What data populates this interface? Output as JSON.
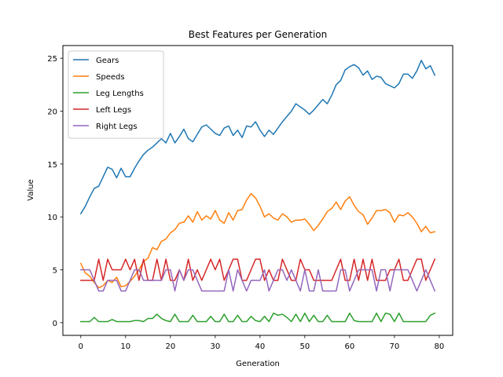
{
  "chart_data": {
    "type": "line",
    "title": "Best Features per Generation",
    "xlabel": "Generation",
    "ylabel": "Value",
    "xlim": [
      -4,
      83
    ],
    "ylim": [
      -1.2,
      26.2
    ],
    "xticks": [
      0,
      10,
      20,
      30,
      40,
      50,
      60,
      70,
      80
    ],
    "yticks": [
      0,
      5,
      10,
      15,
      20,
      25
    ],
    "grid": false,
    "legend_position": "upper-left",
    "x": [
      0,
      1,
      2,
      3,
      4,
      5,
      6,
      7,
      8,
      9,
      10,
      11,
      12,
      13,
      14,
      15,
      16,
      17,
      18,
      19,
      20,
      21,
      22,
      23,
      24,
      25,
      26,
      27,
      28,
      29,
      30,
      31,
      32,
      33,
      34,
      35,
      36,
      37,
      38,
      39,
      40,
      41,
      42,
      43,
      44,
      45,
      46,
      47,
      48,
      49,
      50,
      51,
      52,
      53,
      54,
      55,
      56,
      57,
      58,
      59,
      60,
      61,
      62,
      63,
      64,
      65,
      66,
      67,
      68,
      69,
      70,
      71,
      72,
      73,
      74,
      75,
      76,
      77,
      78,
      79
    ],
    "series": [
      {
        "name": "Gears",
        "color": "#1f77b4",
        "values": [
          10.3,
          11.0,
          11.9,
          12.7,
          12.9,
          13.8,
          14.7,
          14.5,
          13.7,
          14.6,
          13.8,
          13.8,
          14.6,
          15.3,
          15.9,
          16.3,
          16.6,
          17.0,
          17.4,
          17.0,
          17.9,
          17.0,
          17.6,
          18.3,
          17.4,
          17.1,
          17.8,
          18.5,
          18.7,
          18.3,
          17.9,
          17.7,
          18.4,
          18.6,
          17.7,
          18.2,
          17.5,
          18.6,
          18.5,
          19.0,
          18.2,
          17.6,
          18.2,
          17.8,
          18.4,
          19.0,
          19.5,
          20.0,
          20.7,
          20.4,
          20.1,
          19.7,
          20.1,
          20.6,
          21.1,
          20.7,
          21.5,
          22.5,
          22.9,
          23.9,
          24.2,
          24.4,
          24.1,
          23.4,
          23.8,
          23.0,
          23.3,
          23.2,
          22.6,
          22.4,
          22.2,
          22.6,
          23.5,
          23.5,
          23.1,
          23.8,
          24.8,
          24.0,
          24.3,
          23.4
        ]
      },
      {
        "name": "Speeds",
        "color": "#ff7f0e",
        "values": [
          5.6,
          4.7,
          4.4,
          3.8,
          3.3,
          3.5,
          4.0,
          3.8,
          4.3,
          3.4,
          3.5,
          3.9,
          4.4,
          5.0,
          5.8,
          6.1,
          7.1,
          6.9,
          7.7,
          7.9,
          8.5,
          8.8,
          9.4,
          9.5,
          10.1,
          9.5,
          10.5,
          9.7,
          10.1,
          9.8,
          10.6,
          9.7,
          9.4,
          10.4,
          9.7,
          10.6,
          10.7,
          11.6,
          12.2,
          11.8,
          11.0,
          10.0,
          10.3,
          9.9,
          9.7,
          10.3,
          10.0,
          9.5,
          9.7,
          9.7,
          9.8,
          9.3,
          8.7,
          9.2,
          9.8,
          10.5,
          10.8,
          11.4,
          10.7,
          11.5,
          11.9,
          11.1,
          10.5,
          10.2,
          9.3,
          9.9,
          10.6,
          10.6,
          10.7,
          10.4,
          9.5,
          10.2,
          10.1,
          10.4,
          10.0,
          9.4,
          8.6,
          9.1,
          8.5,
          8.6
        ]
      },
      {
        "name": "Leg Lengths",
        "color": "#2ca02c",
        "values": [
          0.1,
          0.1,
          0.1,
          0.5,
          0.1,
          0.1,
          0.1,
          0.3,
          0.1,
          0.1,
          0.1,
          0.1,
          0.2,
          0.2,
          0.1,
          0.4,
          0.4,
          0.8,
          0.4,
          0.2,
          0.1,
          0.8,
          0.1,
          0.1,
          0.1,
          0.7,
          0.1,
          0.1,
          0.1,
          0.6,
          0.1,
          0.1,
          0.8,
          0.1,
          0.1,
          0.7,
          0.1,
          0.1,
          0.6,
          0.2,
          0.1,
          0.6,
          0.1,
          0.9,
          0.7,
          0.8,
          0.5,
          0.1,
          0.8,
          0.1,
          0.9,
          0.1,
          0.7,
          0.1,
          0.1,
          0.7,
          0.1,
          0.1,
          0.1,
          0.1,
          0.9,
          0.2,
          0.1,
          0.1,
          0.1,
          0.1,
          0.9,
          0.1,
          0.9,
          0.8,
          0.1,
          0.9,
          0.1,
          0.1,
          0.1,
          0.1,
          0.1,
          0.1,
          0.7,
          0.9
        ]
      },
      {
        "name": "Left Legs",
        "color": "#d62728",
        "values": [
          4,
          4,
          4,
          4,
          6,
          4,
          6,
          5,
          5,
          5,
          6,
          5,
          6,
          4,
          6,
          4,
          4,
          6,
          4,
          6,
          4,
          4,
          5,
          4,
          6,
          4,
          5,
          4,
          5,
          6,
          5,
          6,
          4,
          5,
          6,
          6,
          4,
          4,
          5,
          6,
          6,
          4,
          5,
          4,
          4,
          6,
          5,
          4,
          4,
          6,
          5,
          5,
          4,
          4,
          4,
          4,
          4,
          5,
          6,
          4,
          4,
          6,
          4,
          6,
          4,
          6,
          4,
          4,
          4,
          5,
          5,
          6,
          4,
          4,
          5,
          6,
          6,
          4,
          5,
          6
        ]
      },
      {
        "name": "Right Legs",
        "color": "#9467bd",
        "values": [
          5,
          5,
          5,
          4,
          3,
          3,
          4,
          4,
          4,
          3,
          3,
          4,
          5,
          5,
          4,
          4,
          4,
          4,
          4,
          5,
          5,
          3,
          5,
          4,
          5,
          5,
          4,
          3,
          3,
          3,
          3,
          3,
          3,
          5,
          3,
          5,
          4,
          3,
          4,
          4,
          4,
          5,
          3,
          4,
          5,
          5,
          4,
          5,
          4,
          3,
          5,
          3,
          3,
          5,
          3,
          3,
          3,
          3,
          5,
          5,
          3,
          4,
          5,
          5,
          5,
          5,
          3,
          5,
          5,
          3,
          5,
          5,
          5,
          5,
          4,
          3,
          4,
          5,
          4,
          3
        ]
      }
    ]
  }
}
